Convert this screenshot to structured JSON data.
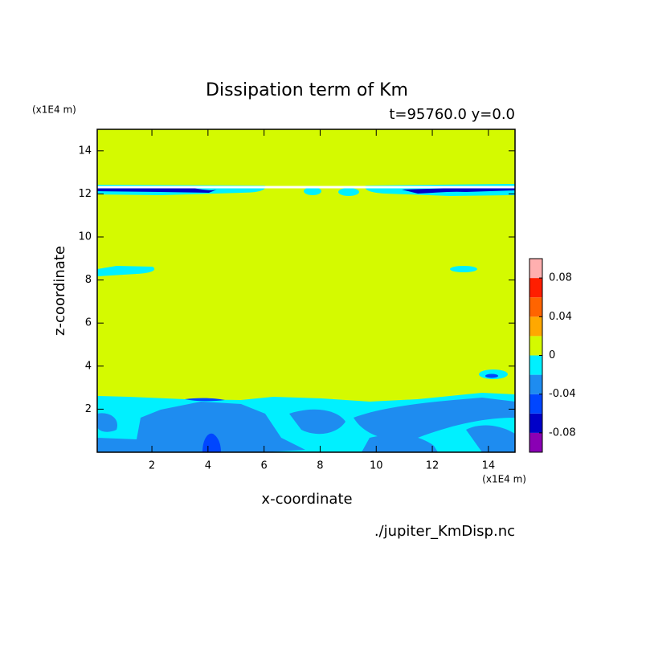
{
  "chart_data": {
    "type": "contour",
    "title": "Dissipation term of Km",
    "subtitle": "t=95760.0 y=0.0",
    "x_label": "x-coordinate",
    "y_label": "z-coordinate",
    "x_unit": "(x1E4 m)",
    "y_unit": "(x1E4 m)",
    "source": "./jupiter_KmDisp.nc",
    "xlim": [
      0.05,
      14.95
    ],
    "ylim": [
      0,
      15
    ],
    "xticks": [
      2,
      4,
      6,
      8,
      10,
      12,
      14
    ],
    "yticks": [
      2,
      4,
      6,
      8,
      10,
      12,
      14
    ],
    "levels": [
      -0.1,
      -0.08,
      -0.06,
      -0.04,
      -0.02,
      0,
      0.02,
      0.04,
      0.06,
      0.08,
      0.1
    ],
    "colors": [
      "#8a00b4",
      "#0000c8",
      "#0046ff",
      "#1e8cf0",
      "#00f0ff",
      "#d4fa00",
      "#ffa800",
      "#ff6400",
      "#ff1e00",
      "#ffafaf"
    ],
    "colorbar_ticks": [
      -0.08,
      -0.04,
      0,
      0.04,
      0.08
    ]
  }
}
